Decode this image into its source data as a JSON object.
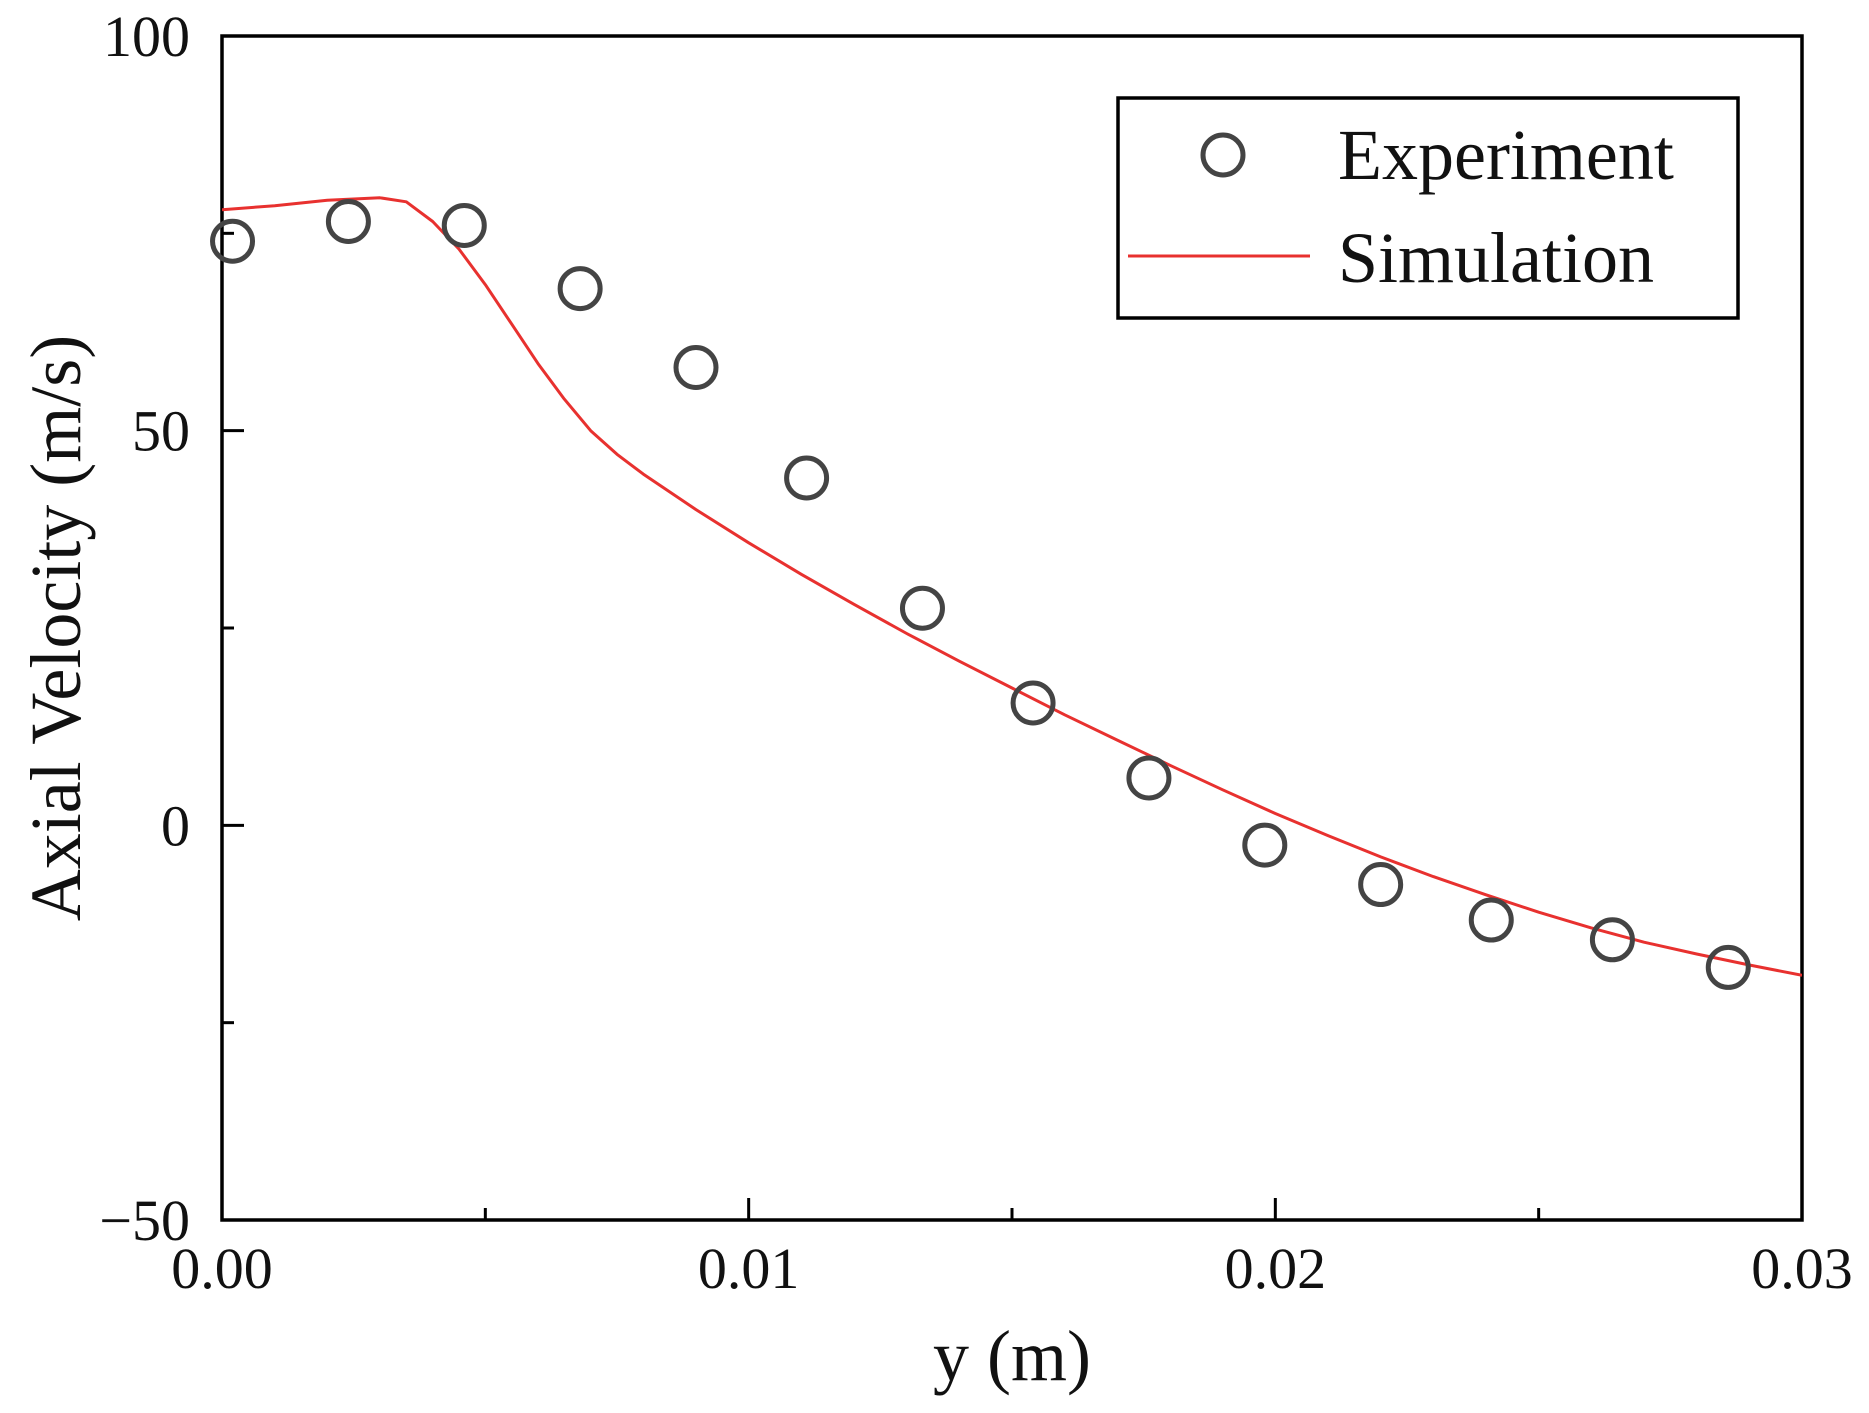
{
  "chart_data": {
    "type": "scatter",
    "title": "",
    "xlabel": "y (m)",
    "ylabel": "Axial Velocity (m/s)",
    "xlim": [
      0,
      0.03
    ],
    "ylim": [
      -50,
      100
    ],
    "x_ticks": [
      0.0,
      0.01,
      0.02,
      0.03
    ],
    "x_tick_labels": [
      "0.00",
      "0.01",
      "0.02",
      "0.03"
    ],
    "x_minor_ticks": [
      0.005,
      0.015,
      0.025
    ],
    "y_ticks": [
      -50,
      0,
      50,
      100
    ],
    "y_tick_labels": [
      "−50",
      "0",
      "50",
      "100"
    ],
    "y_minor_ticks": [
      -25,
      25,
      75
    ],
    "grid": false,
    "legend_position": "top-right",
    "series": [
      {
        "name": "Experiment",
        "kind": "scatter",
        "marker": "open-circle",
        "color": "#444444",
        "x": [
          0.0002,
          0.0024,
          0.0046,
          0.0068,
          0.009,
          0.0111,
          0.0133,
          0.0154,
          0.0176,
          0.0198,
          0.022,
          0.0241,
          0.0264,
          0.0286
        ],
        "y": [
          74,
          76.5,
          76,
          68,
          58,
          44,
          27.5,
          15.5,
          6,
          -2.5,
          -7.5,
          -12,
          -14.5,
          -18
        ]
      },
      {
        "name": "Simulation",
        "kind": "line",
        "color": "#e8312f",
        "x": [
          0,
          0.001,
          0.002,
          0.003,
          0.0035,
          0.004,
          0.0045,
          0.005,
          0.0055,
          0.006,
          0.0065,
          0.007,
          0.0075,
          0.008,
          0.009,
          0.01,
          0.011,
          0.012,
          0.013,
          0.014,
          0.015,
          0.016,
          0.017,
          0.018,
          0.019,
          0.02,
          0.021,
          0.022,
          0.023,
          0.024,
          0.025,
          0.026,
          0.027,
          0.028,
          0.029,
          0.03
        ],
        "y": [
          78,
          78.5,
          79.2,
          79.5,
          79,
          76.5,
          73,
          68.5,
          63.5,
          58.5,
          54,
          50,
          47,
          44.5,
          40,
          35.8,
          31.8,
          28,
          24.3,
          20.8,
          17.4,
          14,
          10.8,
          7.6,
          4.5,
          1.5,
          -1.3,
          -4,
          -6.5,
          -8.8,
          -11,
          -13,
          -14.8,
          -16.3,
          -17.7,
          -19
        ]
      }
    ]
  }
}
